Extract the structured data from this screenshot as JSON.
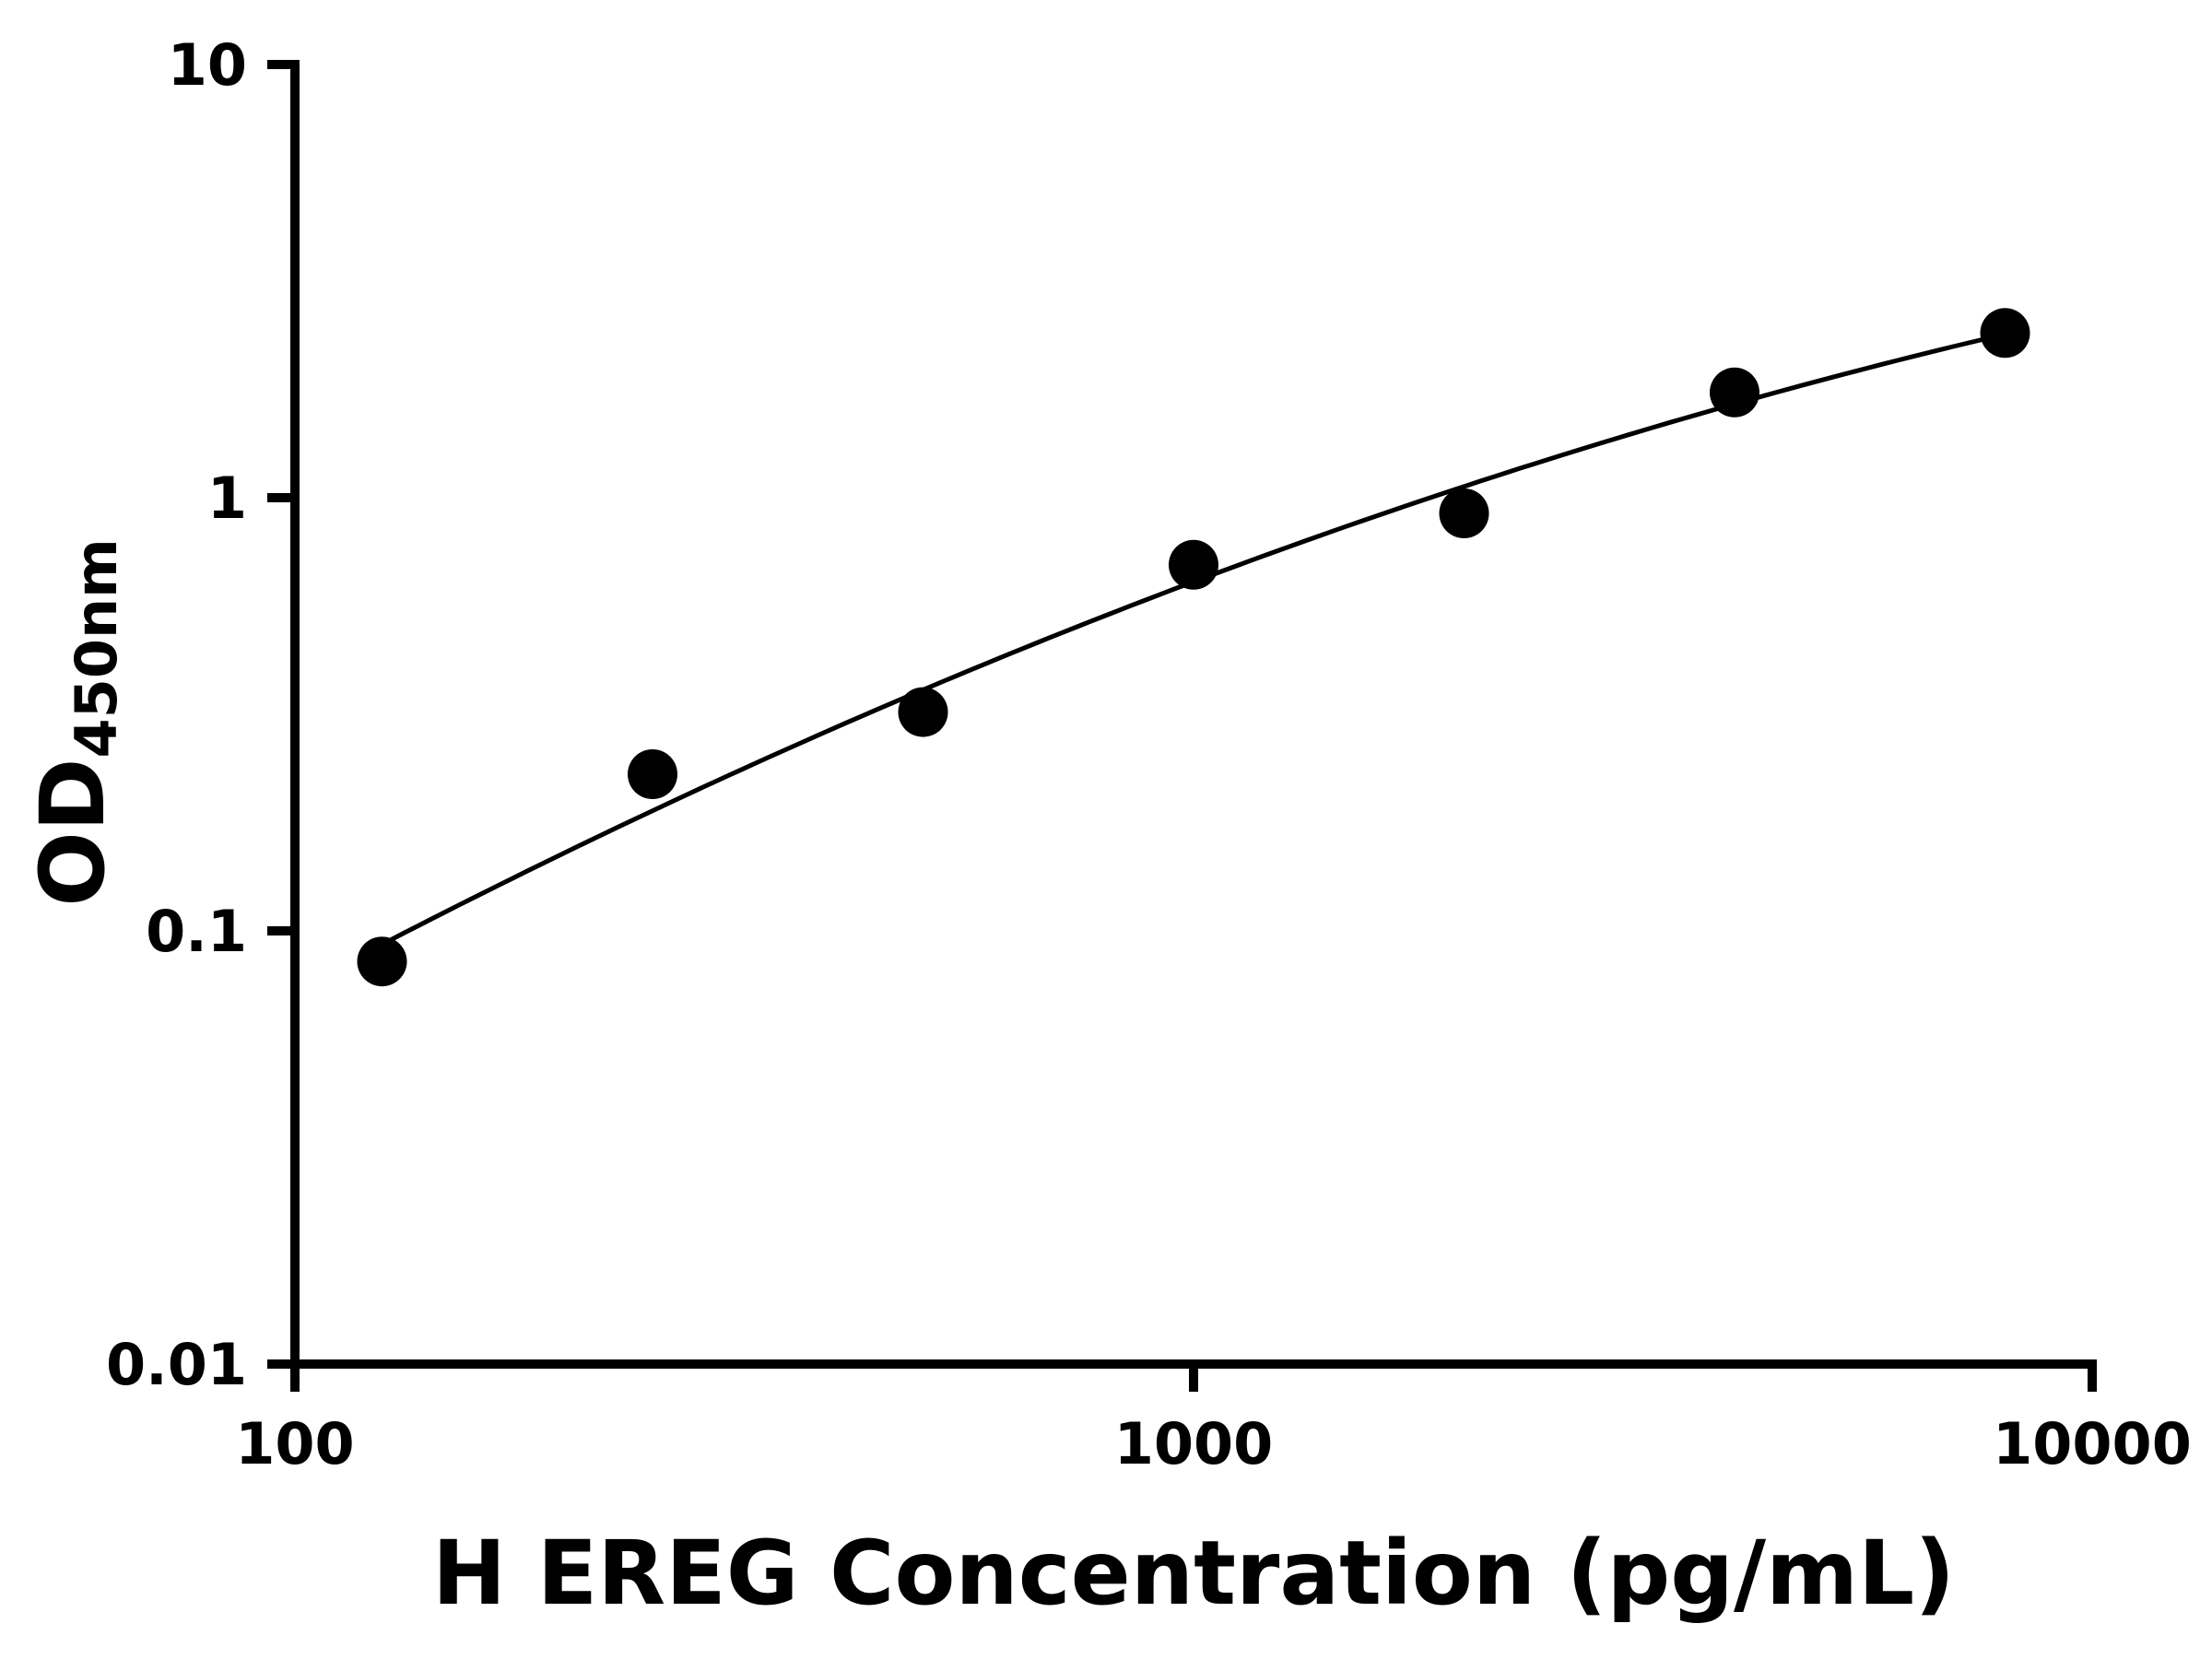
{
  "chart_data": {
    "type": "scatter",
    "title": "",
    "xlabel": "H EREG Concentration (pg/mL)",
    "ylabel_main": "OD",
    "ylabel_sub": "450nm",
    "x_scale": "log",
    "y_scale": "log",
    "xlim": [
      100,
      10000
    ],
    "ylim": [
      0.01,
      10
    ],
    "x_ticks": [
      100,
      1000,
      10000
    ],
    "x_tick_labels": [
      "100",
      "1000",
      "10000"
    ],
    "y_ticks": [
      10,
      1,
      0.1,
      0.01
    ],
    "y_tick_labels": [
      "10",
      "1",
      "0.1",
      "0.01"
    ],
    "grid": false,
    "legend": "none",
    "points": {
      "x": [
        125,
        250,
        500,
        1000,
        2000,
        4000,
        8000
      ],
      "y": [
        0.085,
        0.23,
        0.32,
        0.7,
        0.92,
        1.75,
        2.4
      ]
    },
    "fit_curve": {
      "type": "quadratic_loglog",
      "x_range": [
        128,
        8000
      ]
    },
    "marker_color": "#000000",
    "line_color": "#000000",
    "axis_color": "#000000",
    "background": "#ffffff"
  }
}
